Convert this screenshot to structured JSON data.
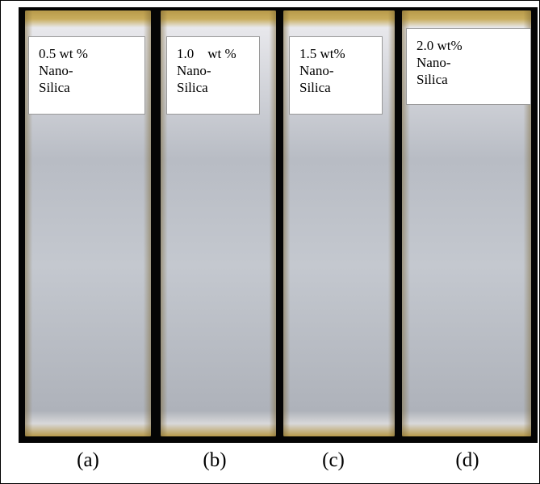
{
  "panels": [
    {
      "label": [
        "0.5 wt %",
        "Nano-",
        "Silica"
      ],
      "caption": "(a)"
    },
    {
      "label": [
        "1.0    wt %",
        "Nano-",
        "Silica"
      ],
      "caption": "(b)"
    },
    {
      "label": [
        "1.5 wt%",
        "Nano-",
        "Silica"
      ],
      "caption": "(c)"
    },
    {
      "label": [
        "2.0 wt%",
        "Nano-",
        "Silica"
      ],
      "caption": "(d)"
    }
  ]
}
